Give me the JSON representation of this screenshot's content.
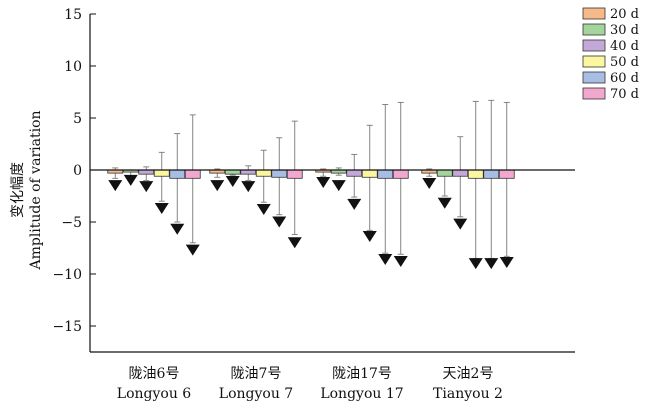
{
  "chart_data": {
    "type": "bar",
    "ylabel_zh": "变化幅度",
    "ylabel": "Amplitude of variation",
    "ylim": [
      -17.5,
      15
    ],
    "yticks": [
      -15,
      -10,
      -5,
      0,
      5,
      10,
      15
    ],
    "categories": [
      {
        "zh": "陇油6号",
        "en": "Longyou 6"
      },
      {
        "zh": "陇油7号",
        "en": "Longyou 7"
      },
      {
        "zh": "陇油17号",
        "en": "Longyou 17"
      },
      {
        "zh": "天油2号",
        "en": "Tianyou 2"
      }
    ],
    "series": [
      {
        "name": "20 d",
        "color": "#f5b98a",
        "values": [
          -0.3,
          -0.3,
          -0.2,
          -0.3
        ],
        "upper": [
          0.2,
          0.1,
          0.1,
          0.1
        ],
        "lower": [
          -0.8,
          -0.7,
          -0.6,
          -0.6
        ],
        "marker": [
          -1.5,
          -1.5,
          -1.2,
          -1.3
        ]
      },
      {
        "name": "30 d",
        "color": "#a3d49c",
        "values": [
          -0.2,
          -0.4,
          -0.3,
          -0.6
        ],
        "upper": [
          0.0,
          0.0,
          0.2,
          0.0
        ],
        "lower": [
          -0.6,
          -0.5,
          -0.5,
          -2.5
        ],
        "marker": [
          -1.0,
          -1.1,
          -1.5,
          -3.2
        ]
      },
      {
        "name": "40 d",
        "color": "#c4a9d8",
        "values": [
          -0.4,
          -0.4,
          -0.6,
          -0.6
        ],
        "upper": [
          0.3,
          0.4,
          1.5,
          3.2
        ],
        "lower": [
          -1.0,
          -1.0,
          -2.6,
          -4.5
        ],
        "marker": [
          -1.6,
          -1.6,
          -3.3,
          -5.2
        ]
      },
      {
        "name": "50 d",
        "color": "#fbf6a0",
        "values": [
          -0.6,
          -0.6,
          -0.7,
          -0.8
        ],
        "upper": [
          1.7,
          1.9,
          4.3,
          6.6
        ],
        "lower": [
          -3.0,
          -3.1,
          -5.8,
          -8.5
        ],
        "marker": [
          -3.7,
          -3.8,
          -6.4,
          -9.0
        ]
      },
      {
        "name": "60 d",
        "color": "#a8bde3",
        "values": [
          -0.8,
          -0.7,
          -0.8,
          -0.8
        ],
        "upper": [
          3.5,
          3.1,
          6.3,
          6.7
        ],
        "lower": [
          -5.0,
          -4.3,
          -8.0,
          -8.5
        ],
        "marker": [
          -5.7,
          -5.0,
          -8.6,
          -9.0
        ]
      },
      {
        "name": "70 d",
        "color": "#f2a7cf",
        "values": [
          -0.8,
          -0.8,
          -0.8,
          -0.8
        ],
        "upper": [
          5.3,
          4.7,
          6.5,
          6.5
        ],
        "lower": [
          -7.0,
          -6.2,
          -8.1,
          -8.3
        ],
        "marker": [
          -7.7,
          -7.0,
          -8.8,
          -8.9
        ]
      }
    ],
    "legend_position": "top-right",
    "grid": false
  }
}
